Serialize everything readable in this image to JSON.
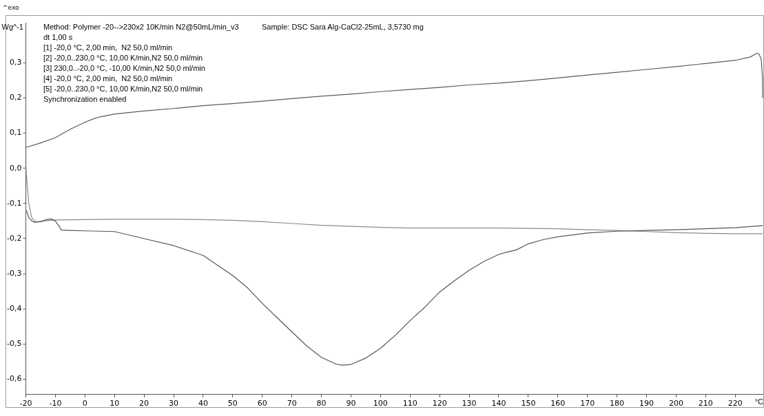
{
  "chart_data": {
    "type": "line",
    "xlabel": "°C",
    "ylabel": "Wg^-1",
    "annotations": [
      "^exo",
      "Method: Polymer -20-->230x2 10K/min N2@50mL/min_v3",
      "dt 1,00 s",
      "[1] -20,0 °C, 2,00 min,  N2 50,0 ml/min",
      "[2] -20,0..230,0 °C, 10,00 K/min,N2 50,0 ml/min",
      "[3] 230,0..-20,0 °C, -10,00 K/min,N2 50,0 ml/min",
      "[4] -20,0 °C, 2,00 min,  N2 50,0 ml/min",
      "[5] -20,0..230,0 °C, 10,00 K/min,N2 50,0 ml/min",
      "Synchronization enabled",
      "Sample: DSC Sara Alg-CaCl2-25mL, 3,5730 mg"
    ],
    "xlim": [
      -20,
      229.5
    ],
    "xticks": [
      -20,
      -10,
      0,
      10,
      20,
      30,
      40,
      50,
      60,
      70,
      80,
      90,
      100,
      110,
      120,
      130,
      140,
      150,
      160,
      170,
      180,
      190,
      200,
      210,
      220
    ],
    "ylim": [
      -0.642,
      0.414
    ],
    "yticks": [
      {
        "value": -0.6,
        "label": "-0,6"
      },
      {
        "value": -0.5,
        "label": "-0,5"
      },
      {
        "value": -0.4,
        "label": "-0,4"
      },
      {
        "value": -0.3,
        "label": "-0,3"
      },
      {
        "value": -0.2,
        "label": "-0,2"
      },
      {
        "value": -0.1,
        "label": "-0,1"
      },
      {
        "value": 0,
        "label": "0,0"
      },
      {
        "value": 0.1,
        "label": "0,1"
      },
      {
        "value": 0.2,
        "label": "0,2"
      },
      {
        "value": 0.3,
        "label": "0,3"
      }
    ],
    "grid": false,
    "legend": false,
    "marker": "none",
    "line_style": "solid",
    "series": [
      {
        "color": "#5a5a5a",
        "x": [
          229.3,
          229.2,
          228.8,
          228,
          227.3,
          225,
          220,
          210,
          200,
          190,
          180,
          170,
          160,
          150,
          140,
          130,
          120,
          110,
          100,
          90,
          80,
          70,
          60,
          50,
          40,
          30,
          20,
          10,
          5,
          3,
          0,
          -5,
          -10,
          -15,
          -20,
          -20
        ],
        "values": [
          0.2,
          0.26,
          0.31,
          0.326,
          0.327,
          0.316,
          0.307,
          0.298,
          0.289,
          0.281,
          0.273,
          0.265,
          0.257,
          0.249,
          0.242,
          0.237,
          0.23,
          0.224,
          0.218,
          0.211,
          0.205,
          0.198,
          0.191,
          0.184,
          0.178,
          0.17,
          0.163,
          0.154,
          0.146,
          0.141,
          0.131,
          0.111,
          0.087,
          0.072,
          0.059,
          -0.1
        ]
      },
      {
        "color": "#555555",
        "x": [
          -19.8,
          -19,
          -18,
          -17,
          -15,
          -13,
          -11.5,
          -10,
          -8.5,
          -8,
          -5,
          0,
          10,
          20,
          30,
          40,
          50,
          55,
          60,
          65,
          70,
          75,
          80,
          85,
          87,
          90,
          95,
          100,
          105,
          110,
          115,
          120,
          125,
          130,
          135,
          140,
          143,
          146,
          150,
          155,
          160,
          170,
          180,
          190,
          200,
          210,
          220,
          229.3
        ],
        "values": [
          -0.12,
          -0.14,
          -0.15,
          -0.154,
          -0.152,
          -0.146,
          -0.144,
          -0.15,
          -0.168,
          -0.176,
          -0.177,
          -0.178,
          -0.18,
          -0.2,
          -0.22,
          -0.248,
          -0.305,
          -0.34,
          -0.384,
          -0.425,
          -0.465,
          -0.505,
          -0.538,
          -0.557,
          -0.56,
          -0.558,
          -0.54,
          -0.512,
          -0.475,
          -0.433,
          -0.395,
          -0.352,
          -0.32,
          -0.29,
          -0.265,
          -0.245,
          -0.238,
          -0.232,
          -0.215,
          -0.203,
          -0.195,
          -0.184,
          -0.179,
          -0.177,
          -0.175,
          -0.172,
          -0.169,
          -0.163
        ]
      },
      {
        "color": "#8a8a8a",
        "x": [
          -20,
          -19.5,
          -19,
          -18,
          -17,
          -16,
          -14,
          -10,
          0,
          10,
          20,
          30,
          40,
          50,
          60,
          70,
          80,
          90,
          100,
          110,
          120,
          130,
          140,
          150,
          160,
          170,
          180,
          190,
          200,
          210,
          220,
          229.3
        ],
        "values": [
          0.0,
          -0.05,
          -0.1,
          -0.14,
          -0.15,
          -0.152,
          -0.15,
          -0.147,
          -0.146,
          -0.145,
          -0.145,
          -0.145,
          -0.146,
          -0.148,
          -0.152,
          -0.157,
          -0.162,
          -0.165,
          -0.168,
          -0.17,
          -0.17,
          -0.17,
          -0.17,
          -0.171,
          -0.172,
          -0.175,
          -0.177,
          -0.18,
          -0.183,
          -0.185,
          -0.186,
          -0.186
        ]
      }
    ]
  }
}
